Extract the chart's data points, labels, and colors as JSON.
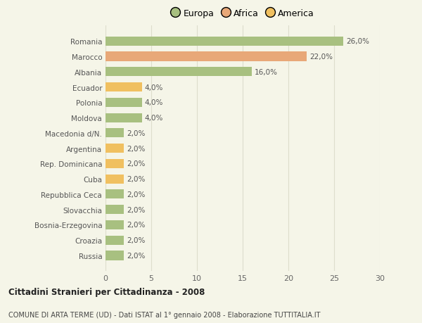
{
  "categories": [
    "Russia",
    "Croazia",
    "Bosnia-Erzegovina",
    "Slovacchia",
    "Repubblica Ceca",
    "Cuba",
    "Rep. Dominicana",
    "Argentina",
    "Macedonia d/N.",
    "Moldova",
    "Polonia",
    "Ecuador",
    "Albania",
    "Marocco",
    "Romania"
  ],
  "values": [
    2,
    2,
    2,
    2,
    2,
    2,
    2,
    2,
    2,
    4,
    4,
    4,
    16,
    22,
    26
  ],
  "colors": [
    "#a8c080",
    "#a8c080",
    "#a8c080",
    "#a8c080",
    "#a8c080",
    "#f0c060",
    "#f0c060",
    "#f0c060",
    "#a8c080",
    "#a8c080",
    "#a8c080",
    "#f0c060",
    "#a8c080",
    "#e8a878",
    "#a8c080"
  ],
  "bar_labels": [
    "2,0%",
    "2,0%",
    "2,0%",
    "2,0%",
    "2,0%",
    "2,0%",
    "2,0%",
    "2,0%",
    "2,0%",
    "4,0%",
    "4,0%",
    "4,0%",
    "16,0%",
    "22,0%",
    "26,0%"
  ],
  "legend_labels": [
    "Europa",
    "Africa",
    "America"
  ],
  "legend_colors": [
    "#a8c080",
    "#e8a878",
    "#f0c060"
  ],
  "xlim": [
    0,
    30
  ],
  "xticks": [
    0,
    5,
    10,
    15,
    20,
    25,
    30
  ],
  "title": "Cittadini Stranieri per Cittadinanza - 2008",
  "subtitle": "COMUNE DI ARTA TERME (UD) - Dati ISTAT al 1° gennaio 2008 - Elaborazione TUTTITALIA.IT",
  "background_color": "#f5f5e8",
  "grid_color": "#ddddcc",
  "bar_height": 0.6
}
